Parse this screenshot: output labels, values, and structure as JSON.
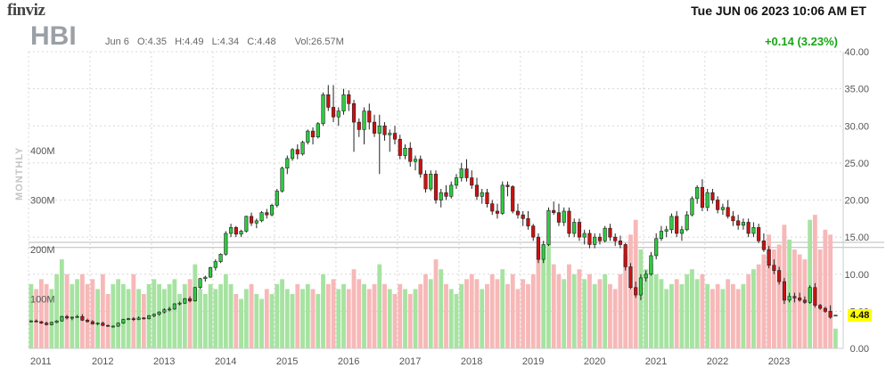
{
  "header": {
    "logo": "finviz",
    "datetime": "Tue JUN 06 2023 10:06 AM ET",
    "ticker": "HBI",
    "date": "Jun 6",
    "open": "O:4.35",
    "high": "H:4.49",
    "low": "L:4.34",
    "close": "C:4.48",
    "volume": "Vol:26.57M",
    "change": "+0.14 (3.23%)",
    "change_color": "#16a616",
    "period": "MONTHLY"
  },
  "current_price": "4.48",
  "colors": {
    "up": "#2ecc40",
    "down": "#cc1111",
    "vol_up": "#a6e3a1",
    "vol_down": "#f7b8b8"
  },
  "chart_data": {
    "type": "candlestick",
    "price_axis": {
      "ticks": [
        "0.00",
        "5.00",
        "10.00",
        "15.00",
        "20.00",
        "25.00",
        "30.00",
        "35.00",
        "40.00"
      ],
      "range": [
        0,
        40
      ]
    },
    "volume_axis": {
      "ticks": [
        "100M",
        "200M",
        "300M",
        "400M"
      ],
      "range": [
        0,
        600
      ]
    },
    "x_labels": [
      "2011",
      "2012",
      "2013",
      "2014",
      "2015",
      "2016",
      "2017",
      "2018",
      "2019",
      "2020",
      "2021",
      "2022",
      "2023"
    ],
    "reference_lines": [
      14.3,
      13.6
    ],
    "grid": true,
    "start": "2011-01",
    "bars": [
      [
        3.6,
        3.8,
        3.5,
        3.7,
        130
      ],
      [
        3.7,
        3.9,
        3.5,
        3.6,
        120
      ],
      [
        3.6,
        3.7,
        3.3,
        3.4,
        140
      ],
      [
        3.4,
        3.6,
        3.1,
        3.2,
        130
      ],
      [
        3.2,
        3.6,
        3.1,
        3.5,
        120
      ],
      [
        3.5,
        3.8,
        3.4,
        3.7,
        150
      ],
      [
        3.7,
        4.4,
        3.6,
        4.3,
        180
      ],
      [
        4.3,
        4.5,
        3.9,
        4.1,
        150
      ],
      [
        4.1,
        4.3,
        3.8,
        4.2,
        130
      ],
      [
        4.2,
        4.5,
        4.1,
        4.3,
        140
      ],
      [
        4.3,
        4.6,
        3.7,
        3.8,
        150
      ],
      [
        3.8,
        4.0,
        3.5,
        3.6,
        130
      ],
      [
        3.6,
        3.8,
        3.2,
        3.3,
        140
      ],
      [
        3.3,
        3.5,
        3.1,
        3.4,
        120
      ],
      [
        3.4,
        3.6,
        3.0,
        3.1,
        150
      ],
      [
        3.1,
        3.2,
        2.9,
        3.0,
        110
      ],
      [
        3.0,
        3.1,
        2.8,
        3.0,
        130
      ],
      [
        3.0,
        3.5,
        2.9,
        3.4,
        140
      ],
      [
        3.4,
        4.0,
        3.3,
        3.9,
        130
      ],
      [
        3.9,
        4.1,
        3.8,
        4.0,
        120
      ],
      [
        4.0,
        4.2,
        3.7,
        3.9,
        150
      ],
      [
        3.9,
        4.3,
        3.8,
        4.1,
        120
      ],
      [
        4.1,
        4.2,
        3.9,
        4.0,
        110
      ],
      [
        4.0,
        4.5,
        3.9,
        4.4,
        130
      ],
      [
        4.4,
        4.7,
        4.2,
        4.6,
        140
      ],
      [
        4.6,
        5.0,
        4.4,
        4.9,
        130
      ],
      [
        4.9,
        5.4,
        4.7,
        5.2,
        120
      ],
      [
        5.2,
        5.6,
        5.0,
        5.3,
        130
      ],
      [
        5.3,
        6.1,
        5.2,
        6.0,
        140
      ],
      [
        6.0,
        6.3,
        5.8,
        6.1,
        110
      ],
      [
        6.1,
        6.8,
        6.0,
        6.7,
        130
      ],
      [
        6.7,
        7.0,
        6.2,
        6.4,
        140
      ],
      [
        6.4,
        8.3,
        6.3,
        8.2,
        170
      ],
      [
        8.2,
        9.5,
        8.0,
        9.4,
        120
      ],
      [
        9.4,
        9.8,
        9.0,
        9.6,
        110
      ],
      [
        9.6,
        11.0,
        9.5,
        10.9,
        130
      ],
      [
        10.9,
        12.0,
        10.5,
        11.7,
        120
      ],
      [
        11.7,
        12.8,
        11.5,
        12.7,
        130
      ],
      [
        12.7,
        15.8,
        12.5,
        15.5,
        150
      ],
      [
        15.5,
        16.8,
        15.0,
        16.3,
        130
      ],
      [
        16.3,
        16.5,
        15.0,
        15.4,
        110
      ],
      [
        15.4,
        16.0,
        15.0,
        15.8,
        100
      ],
      [
        15.8,
        17.9,
        15.6,
        17.8,
        120
      ],
      [
        17.8,
        18.3,
        16.5,
        16.9,
        130
      ],
      [
        16.9,
        17.5,
        16.2,
        17.2,
        110
      ],
      [
        17.2,
        18.5,
        17.0,
        18.3,
        100
      ],
      [
        18.3,
        18.8,
        17.5,
        18.0,
        120
      ],
      [
        18.0,
        19.5,
        17.8,
        19.3,
        110
      ],
      [
        19.3,
        21.5,
        19.0,
        21.2,
        130
      ],
      [
        21.2,
        24.5,
        21.0,
        24.3,
        140
      ],
      [
        24.3,
        26.0,
        23.5,
        25.6,
        120
      ],
      [
        25.6,
        27.0,
        25.3,
        26.8,
        110
      ],
      [
        26.8,
        27.5,
        25.5,
        26.2,
        130
      ],
      [
        26.2,
        28.0,
        26.0,
        27.8,
        120
      ],
      [
        27.8,
        29.5,
        27.5,
        29.3,
        130
      ],
      [
        29.3,
        29.8,
        27.5,
        28.5,
        120
      ],
      [
        28.5,
        30.5,
        28.3,
        30.3,
        110
      ],
      [
        30.3,
        34.5,
        30.0,
        34.2,
        150
      ],
      [
        34.2,
        35.5,
        32.0,
        32.5,
        130
      ],
      [
        32.5,
        35.5,
        30.5,
        31.2,
        140
      ],
      [
        31.2,
        32.5,
        30.0,
        32.0,
        120
      ],
      [
        32.0,
        35.0,
        31.5,
        34.2,
        130
      ],
      [
        34.2,
        34.8,
        32.0,
        33.0,
        120
      ],
      [
        33.0,
        33.5,
        26.5,
        30.5,
        160
      ],
      [
        30.5,
        31.0,
        28.5,
        29.5,
        140
      ],
      [
        29.5,
        32.5,
        27.5,
        32.0,
        130
      ],
      [
        32.0,
        33.0,
        29.5,
        30.5,
        120
      ],
      [
        30.5,
        31.5,
        28.5,
        29.0,
        130
      ],
      [
        29.0,
        31.5,
        23.5,
        30.0,
        170
      ],
      [
        30.0,
        30.5,
        28.0,
        28.8,
        130
      ],
      [
        28.8,
        29.5,
        26.5,
        29.0,
        120
      ],
      [
        29.0,
        30.0,
        27.5,
        28.2,
        110
      ],
      [
        28.2,
        28.8,
        25.5,
        26.0,
        130
      ],
      [
        26.0,
        27.5,
        25.5,
        27.0,
        120
      ],
      [
        27.0,
        27.8,
        24.5,
        25.2,
        110
      ],
      [
        25.2,
        26.0,
        24.0,
        25.5,
        120
      ],
      [
        25.5,
        26.0,
        23.0,
        23.5,
        130
      ],
      [
        23.5,
        24.0,
        21.0,
        21.5,
        150
      ],
      [
        21.5,
        24.0,
        21.2,
        23.5,
        140
      ],
      [
        23.5,
        24.0,
        19.5,
        20.0,
        180
      ],
      [
        20.0,
        21.5,
        19.0,
        21.0,
        160
      ],
      [
        21.0,
        22.0,
        20.0,
        20.5,
        130
      ],
      [
        20.5,
        22.5,
        20.2,
        22.0,
        120
      ],
      [
        22.0,
        23.5,
        21.5,
        23.0,
        110
      ],
      [
        23.0,
        25.0,
        22.5,
        24.2,
        130
      ],
      [
        24.2,
        25.5,
        22.5,
        23.0,
        140
      ],
      [
        23.0,
        24.0,
        21.5,
        22.0,
        150
      ],
      [
        22.0,
        23.0,
        20.0,
        20.5,
        140
      ],
      [
        20.5,
        21.5,
        19.5,
        21.0,
        120
      ],
      [
        21.0,
        21.5,
        19.0,
        19.5,
        130
      ],
      [
        19.5,
        20.0,
        18.0,
        18.5,
        150
      ],
      [
        18.5,
        19.5,
        17.5,
        18.2,
        140
      ],
      [
        18.2,
        22.5,
        18.0,
        22.0,
        160
      ],
      [
        22.0,
        22.5,
        20.5,
        21.8,
        130
      ],
      [
        21.8,
        22.0,
        18.2,
        18.5,
        150
      ],
      [
        18.5,
        19.5,
        17.5,
        18.0,
        120
      ],
      [
        18.0,
        18.5,
        16.5,
        17.5,
        140
      ],
      [
        17.5,
        18.5,
        16.0,
        16.5,
        130
      ],
      [
        16.5,
        16.8,
        14.5,
        15.0,
        150
      ],
      [
        15.0,
        15.5,
        11.5,
        12.0,
        200
      ],
      [
        12.0,
        14.5,
        11.5,
        14.0,
        180
      ],
      [
        14.0,
        19.0,
        13.8,
        18.6,
        210
      ],
      [
        18.6,
        19.8,
        18.0,
        18.3,
        170
      ],
      [
        18.3,
        19.5,
        16.5,
        17.0,
        150
      ],
      [
        17.0,
        19.0,
        16.5,
        18.5,
        140
      ],
      [
        18.5,
        19.0,
        15.0,
        15.5,
        170
      ],
      [
        15.5,
        17.5,
        15.0,
        17.0,
        150
      ],
      [
        17.0,
        17.5,
        14.5,
        15.0,
        160
      ],
      [
        15.0,
        16.0,
        14.0,
        15.5,
        140
      ],
      [
        15.5,
        16.0,
        13.5,
        14.0,
        150
      ],
      [
        14.0,
        15.5,
        13.5,
        15.0,
        130
      ],
      [
        15.0,
        15.5,
        14.0,
        14.5,
        140
      ],
      [
        14.5,
        16.5,
        14.3,
        16.2,
        150
      ],
      [
        16.2,
        16.8,
        14.5,
        15.0,
        130
      ],
      [
        15.0,
        15.5,
        13.8,
        14.5,
        120
      ],
      [
        14.5,
        15.2,
        13.5,
        14.0,
        150
      ],
      [
        14.0,
        14.2,
        10.5,
        11.0,
        190
      ],
      [
        11.0,
        11.5,
        8.0,
        8.2,
        230
      ],
      [
        8.2,
        9.0,
        6.8,
        7.2,
        260
      ],
      [
        7.2,
        10.0,
        6.5,
        9.5,
        200
      ],
      [
        9.5,
        10.5,
        9.0,
        10.0,
        160
      ],
      [
        10.0,
        13.0,
        9.8,
        12.5,
        170
      ],
      [
        12.5,
        15.5,
        12.0,
        14.8,
        150
      ],
      [
        14.8,
        16.5,
        14.5,
        15.8,
        140
      ],
      [
        15.8,
        16.5,
        15.0,
        16.0,
        120
      ],
      [
        16.0,
        18.2,
        15.5,
        17.8,
        130
      ],
      [
        17.8,
        18.5,
        15.0,
        15.5,
        140
      ],
      [
        15.5,
        16.5,
        14.5,
        16.0,
        130
      ],
      [
        16.0,
        18.5,
        15.8,
        18.0,
        150
      ],
      [
        18.0,
        20.5,
        17.8,
        20.2,
        160
      ],
      [
        20.2,
        22.0,
        19.5,
        21.7,
        140
      ],
      [
        21.7,
        22.8,
        18.5,
        19.0,
        150
      ],
      [
        19.0,
        21.5,
        18.5,
        21.0,
        130
      ],
      [
        21.0,
        21.5,
        19.5,
        20.0,
        120
      ],
      [
        20.0,
        20.5,
        18.2,
        18.7,
        130
      ],
      [
        18.7,
        19.5,
        18.0,
        19.0,
        120
      ],
      [
        19.0,
        20.0,
        17.5,
        17.8,
        140
      ],
      [
        17.8,
        18.5,
        16.5,
        17.2,
        130
      ],
      [
        17.2,
        18.0,
        16.0,
        16.6,
        120
      ],
      [
        16.6,
        17.5,
        16.0,
        17.0,
        130
      ],
      [
        17.0,
        17.5,
        15.0,
        15.5,
        150
      ],
      [
        15.5,
        17.0,
        15.0,
        16.3,
        160
      ],
      [
        16.3,
        16.8,
        14.2,
        14.5,
        170
      ],
      [
        14.5,
        15.5,
        13.0,
        13.3,
        190
      ],
      [
        13.3,
        13.8,
        10.8,
        11.2,
        230
      ],
      [
        11.2,
        12.0,
        10.0,
        10.5,
        200
      ],
      [
        10.5,
        11.0,
        8.6,
        9.0,
        210
      ],
      [
        9.0,
        9.5,
        6.0,
        6.5,
        250
      ],
      [
        6.5,
        7.5,
        6.2,
        7.0,
        220
      ],
      [
        7.0,
        7.5,
        6.2,
        6.8,
        200
      ],
      [
        6.8,
        7.5,
        6.3,
        6.5,
        190
      ],
      [
        6.5,
        7.0,
        6.0,
        6.2,
        180
      ],
      [
        6.2,
        8.5,
        6.0,
        8.2,
        260
      ],
      [
        8.2,
        8.8,
        5.5,
        5.8,
        270
      ],
      [
        5.8,
        6.0,
        5.2,
        5.4,
        200
      ],
      [
        5.4,
        5.6,
        4.8,
        5.0,
        240
      ],
      [
        5.0,
        5.8,
        4.0,
        4.2,
        230
      ],
      [
        4.35,
        4.49,
        4.34,
        4.48,
        40
      ]
    ]
  }
}
